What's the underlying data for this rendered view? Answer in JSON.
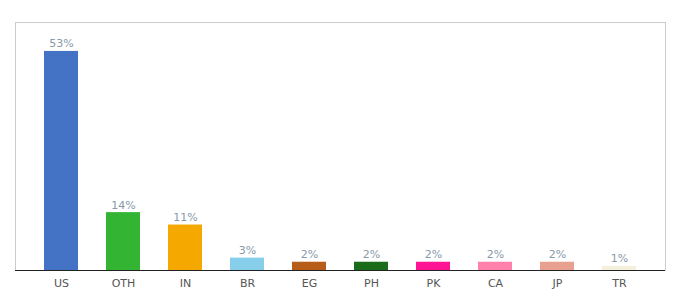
{
  "chart_data": {
    "type": "bar",
    "categories": [
      "US",
      "OTH",
      "IN",
      "BR",
      "EG",
      "PH",
      "PK",
      "CA",
      "JP",
      "TR"
    ],
    "values": [
      53,
      14,
      11,
      3,
      2,
      2,
      2,
      2,
      2,
      1
    ],
    "value_labels": [
      "53%",
      "14%",
      "11%",
      "3%",
      "2%",
      "2%",
      "2%",
      "2%",
      "2%",
      "1%"
    ],
    "colors": [
      "#4472c4",
      "#33b533",
      "#f5a800",
      "#87ceeb",
      "#b85c1a",
      "#1a6b1a",
      "#ff1493",
      "#ff80ab",
      "#e8a090",
      "#f5f0dc"
    ],
    "ylim": [
      0,
      60
    ],
    "data_labels": true,
    "tick_labels": "x",
    "grid": false
  }
}
